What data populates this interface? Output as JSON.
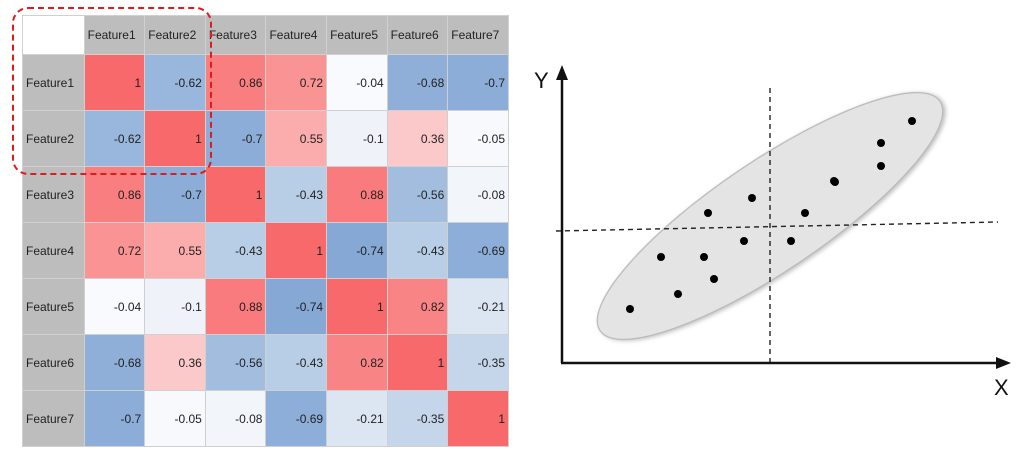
{
  "heatmap": {
    "features": [
      "Feature1",
      "Feature2",
      "Feature3",
      "Feature4",
      "Feature5",
      "Feature6",
      "Feature7"
    ],
    "matrix": [
      [
        1,
        -0.62,
        0.86,
        0.72,
        -0.04,
        -0.68,
        -0.7
      ],
      [
        -0.62,
        1,
        -0.7,
        0.55,
        -0.1,
        0.36,
        -0.05
      ],
      [
        0.86,
        -0.7,
        1,
        -0.43,
        0.88,
        -0.56,
        -0.08
      ],
      [
        0.72,
        0.55,
        -0.43,
        1,
        -0.74,
        -0.43,
        -0.69
      ],
      [
        -0.04,
        -0.1,
        0.88,
        -0.74,
        1,
        0.82,
        -0.21
      ],
      [
        -0.68,
        0.36,
        -0.56,
        -0.43,
        0.82,
        1,
        -0.35
      ],
      [
        -0.7,
        -0.05,
        -0.08,
        -0.69,
        -0.21,
        -0.35,
        1
      ]
    ],
    "positive_color": "#f8696b",
    "negative_color": "#5a8ac6",
    "neutral_color": "#ffffff",
    "highlight_color": "#e01b1b"
  },
  "scatter": {
    "x_label": "X",
    "y_label": "Y",
    "point_color": "#000000",
    "ellipse_fill": "#e4e4e4"
  }
}
